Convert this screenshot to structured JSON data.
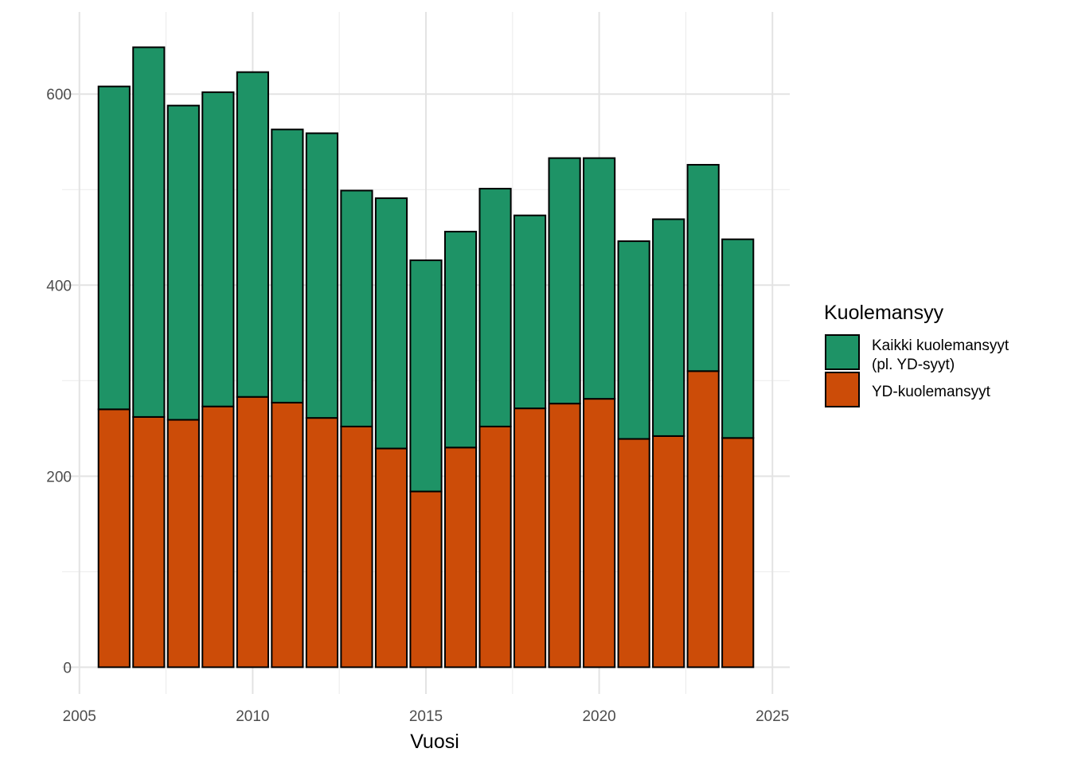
{
  "chart_data": {
    "type": "bar",
    "stacked": true,
    "xlabel": "Vuosi",
    "ylabel": "",
    "xlim": [
      2005,
      2025
    ],
    "ylim": [
      0,
      650
    ],
    "x_ticks": [
      2005,
      2010,
      2015,
      2020,
      2025
    ],
    "y_ticks": [
      0,
      200,
      400,
      600
    ],
    "grid": true,
    "legend_position": "right",
    "x": [
      2006,
      2007,
      2008,
      2009,
      2010,
      2011,
      2012,
      2013,
      2014,
      2015,
      2016,
      2017,
      2018,
      2019,
      2020,
      2021,
      2022,
      2023,
      2024
    ],
    "series": [
      {
        "name": "YD-kuolemansyyt",
        "color": "#CC4C08",
        "values": [
          270,
          262,
          259,
          273,
          283,
          277,
          261,
          252,
          229,
          184,
          230,
          252,
          271,
          276,
          281,
          239,
          242,
          310,
          240
        ]
      },
      {
        "name": "Kaikki kuolemansyyt (pl. YD-syyt)",
        "color": "#1E9366",
        "values": [
          338,
          387,
          329,
          329,
          340,
          286,
          298,
          247,
          262,
          242,
          226,
          249,
          202,
          257,
          252,
          207,
          227,
          216,
          208
        ]
      }
    ]
  },
  "legend": {
    "title": "Kuolemansyy",
    "items": [
      {
        "lines": [
          "Kaikki kuolemansyyt",
          "(pl. YD-syyt)"
        ],
        "color": "#1E9366"
      },
      {
        "lines": [
          "YD-kuolemansyyt"
        ],
        "color": "#CC4C08"
      }
    ]
  }
}
